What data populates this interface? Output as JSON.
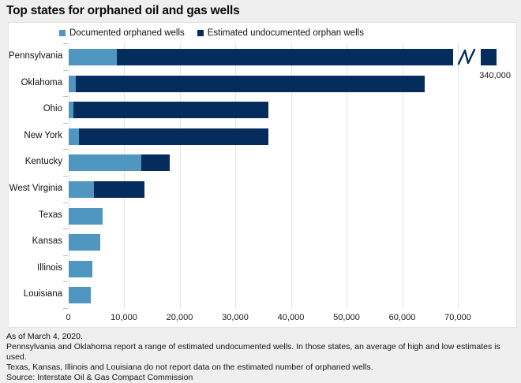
{
  "title": "Top states for orphaned oil and gas wells",
  "legend": {
    "documented_label": "Documented orphaned wells",
    "undocumented_label": "Estimated undocumented orphan wells"
  },
  "colors": {
    "documented": "#4f96c1",
    "undocumented": "#042c5c",
    "gridline": "#e2e2e2",
    "page_bg": "#efefef",
    "panel_bg": "#ffffff"
  },
  "annotation": {
    "pennsylvania_total": "340,000"
  },
  "chart_data": {
    "type": "bar",
    "orientation": "horizontal",
    "stacked": true,
    "title": "Top states for orphaned oil and gas wells",
    "legend_position": "top",
    "grid": true,
    "categories": [
      "Pennsylvania",
      "Oklahoma",
      "Ohio",
      "New York",
      "Kentucky",
      "West Virginia",
      "Texas",
      "Kansas",
      "Illinois",
      "Louisiana"
    ],
    "series": [
      {
        "name": "Documented orphaned wells",
        "values": [
          8700,
          1400,
          900,
          1900,
          13100,
          4600,
          6200,
          5700,
          4300,
          4000
        ]
      },
      {
        "name": "Estimated undocumented orphan wells",
        "values": [
          331300,
          62600,
          35100,
          34100,
          5100,
          9100,
          0,
          0,
          0,
          0
        ]
      }
    ],
    "totals": [
      340000,
      64000,
      36000,
      36000,
      18200,
      13700,
      6200,
      5700,
      4300,
      4000
    ],
    "axis_break": {
      "category": "Pennsylvania",
      "label": "340,000",
      "display_cap": 69100,
      "tail_start": 74100,
      "tail_end": 76900
    },
    "x_ticks": [
      "0",
      "10,000",
      "20,000",
      "30,000",
      "40,000",
      "50,000",
      "60,000",
      "70,000"
    ],
    "x_tick_values": [
      0,
      10000,
      20000,
      30000,
      40000,
      50000,
      60000,
      70000
    ],
    "xlim": [
      0,
      78000
    ]
  },
  "footer": {
    "line1": "As of March 4, 2020.",
    "line2": "Pennsylvania and Oklahoma report a range of estimated undocumented wells. In those states, an average of high and low estimates is used.",
    "line3": "Texas, Kansas, Illinois and Louisiana do not report data on the estimated number of orphaned wells.",
    "line4": "Source: Interstate Oil & Gas Compact Commission"
  }
}
